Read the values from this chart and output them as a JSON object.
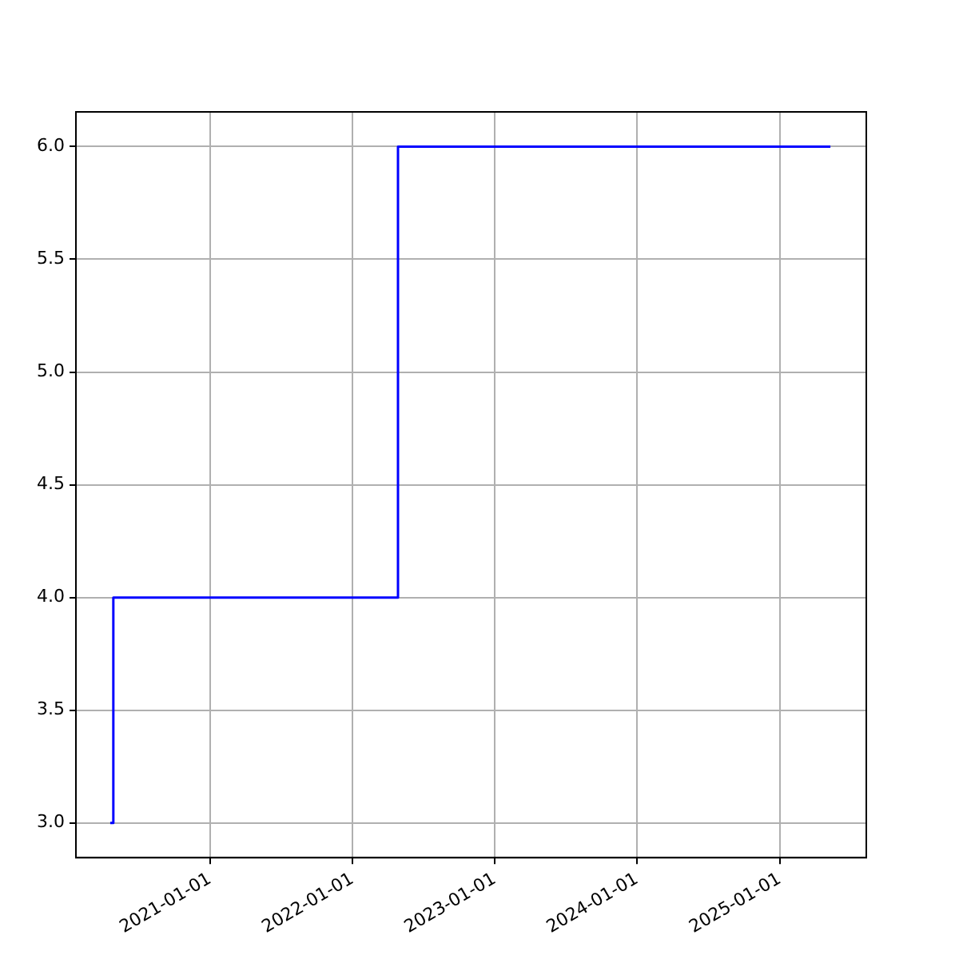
{
  "chart_data": {
    "type": "step",
    "x": [
      "2020-04-20",
      "2020-04-28",
      "2022-04-28",
      "2025-05-11"
    ],
    "series": [
      {
        "color": "#0000ff",
        "values": [
          3,
          4,
          6,
          6
        ]
      }
    ],
    "xlim": [
      "2020-01-23",
      "2025-08-11"
    ],
    "xticks": [
      "2021-01-01",
      "2022-01-01",
      "2023-01-01",
      "2024-01-01",
      "2025-01-01"
    ],
    "ylim": [
      2.846,
      6.154
    ],
    "yticks": [
      {
        "value": 3,
        "label": "3.0"
      },
      {
        "value": 3.5,
        "label": "3.5"
      },
      {
        "value": 4,
        "label": "4.0"
      },
      {
        "value": 4.5,
        "label": "4.5"
      },
      {
        "value": 5,
        "label": "5.0"
      },
      {
        "value": 5.5,
        "label": "5.5"
      },
      {
        "value": 6,
        "label": "6.0"
      }
    ],
    "grid": true
  }
}
